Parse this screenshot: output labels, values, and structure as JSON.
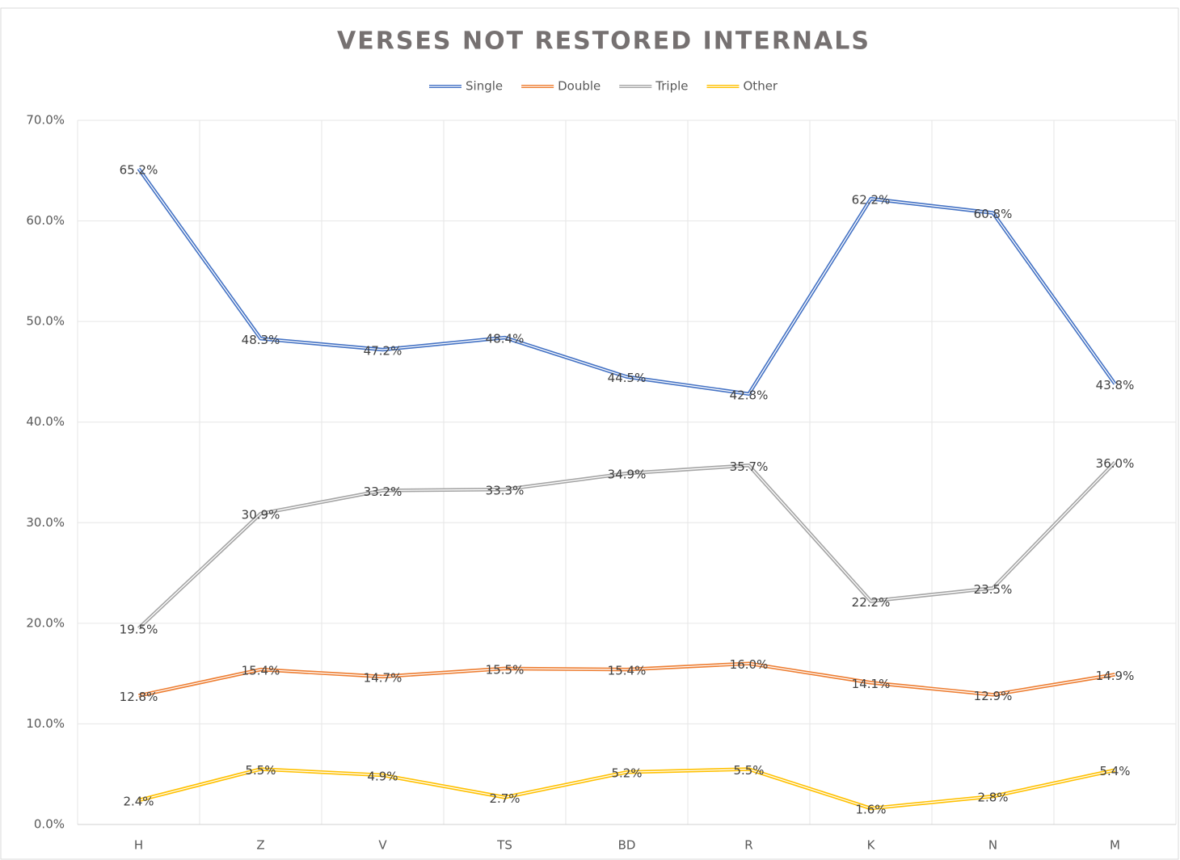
{
  "chart_data": {
    "type": "line",
    "title": "VERSES NOT RESTORED INTERNALS",
    "categories": [
      "H",
      "Z",
      "V",
      "TS",
      "BD",
      "R",
      "K",
      "N",
      "M"
    ],
    "series": [
      {
        "name": "Single",
        "color": "#4472c4",
        "values": [
          65.2,
          48.3,
          47.2,
          48.4,
          44.5,
          42.8,
          62.2,
          60.8,
          43.8
        ],
        "value_labels": [
          "65.2%",
          "48.3%",
          "47.2%",
          "48.4%",
          "44.5%",
          "42.8%",
          "62.2%",
          "60.8%",
          "43.8%"
        ]
      },
      {
        "name": "Double",
        "color": "#ed7d31",
        "values": [
          12.8,
          15.4,
          14.7,
          15.5,
          15.4,
          16.0,
          14.1,
          12.9,
          14.9
        ],
        "value_labels": [
          "12.8%",
          "15.4%",
          "14.7%",
          "15.5%",
          "15.4%",
          "16.0%",
          "14.1%",
          "12.9%",
          "14.9%"
        ]
      },
      {
        "name": "Triple",
        "color": "#a5a5a5",
        "values": [
          19.5,
          30.9,
          33.2,
          33.3,
          34.9,
          35.7,
          22.2,
          23.5,
          36.0
        ],
        "value_labels": [
          "19.5%",
          "30.9%",
          "33.2%",
          "33.3%",
          "34.9%",
          "35.7%",
          "22.2%",
          "23.5%",
          "36.0%"
        ]
      },
      {
        "name": "Other",
        "color": "#ffc000",
        "values": [
          2.4,
          5.5,
          4.9,
          2.7,
          5.2,
          5.5,
          1.6,
          2.8,
          5.4
        ],
        "value_labels": [
          "2.4%",
          "5.5%",
          "4.9%",
          "2.7%",
          "5.2%",
          "5.5%",
          "1.6%",
          "2.8%",
          "5.4%"
        ]
      }
    ],
    "ylim": [
      0,
      70
    ],
    "yticks": [
      {
        "value": 0,
        "label": "0.0%"
      },
      {
        "value": 10,
        "label": "10.0%"
      },
      {
        "value": 20,
        "label": "20.0%"
      },
      {
        "value": 30,
        "label": "30.0%"
      },
      {
        "value": 40,
        "label": "40.0%"
      },
      {
        "value": 50,
        "label": "50.0%"
      },
      {
        "value": 60,
        "label": "60.0%"
      },
      {
        "value": 70,
        "label": "70.0%"
      }
    ],
    "grid": true,
    "legend": "top"
  }
}
